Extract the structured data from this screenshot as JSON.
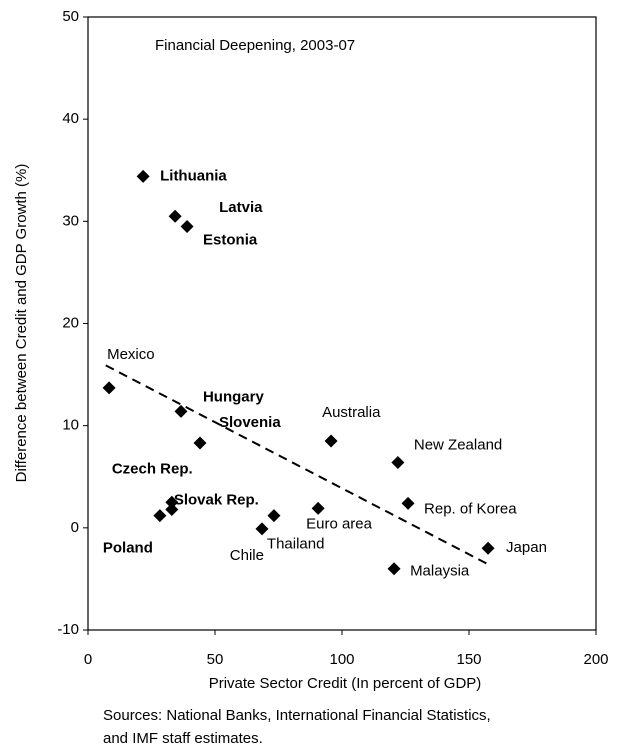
{
  "chart_data": {
    "type": "scatter",
    "title": "Financial Deepening, 2003-07",
    "x_label": "Private Sector Credit (In percent of GDP)",
    "y_label": "Difference between Credit and GDP Growth (%)",
    "source_lines": [
      "Sources: National Banks, International Financial Statistics,",
      "and IMF staff estimates."
    ],
    "color": "#000000",
    "x": [
      21.7,
      34.3,
      39,
      8.3,
      36.6,
      44.1,
      33,
      33,
      28.3,
      68.5,
      73.2,
      90.6,
      95.7,
      122,
      126,
      157.5,
      120.5
    ],
    "values": [
      34.4,
      30.5,
      29.5,
      13.7,
      11.4,
      8.3,
      2.5,
      1.8,
      1.2,
      -0.1,
      1.2,
      1.9,
      8.5,
      6.4,
      2.4,
      -2.0,
      -4.0
    ],
    "point_labels": [
      "Lithuania",
      "Latvia",
      "Estonia",
      "Mexico",
      "Hungary",
      "Slovenia",
      "Czech Rep.",
      "Slovak Rep.",
      "Poland",
      "Chile",
      "Thailand",
      "Euro area",
      "Australia",
      "New Zealand",
      "Rep. of Korea",
      "Japan",
      "Malaysia"
    ],
    "bold_labels": [
      true,
      true,
      true,
      false,
      true,
      true,
      true,
      true,
      true,
      false,
      false,
      false,
      false,
      false,
      false,
      false,
      false
    ],
    "trendline": {
      "x": [
        7,
        157
      ],
      "values": [
        15.9,
        -3.5
      ]
    },
    "xlim": [
      0,
      200
    ],
    "xticks": [
      0,
      50,
      100,
      150,
      200
    ],
    "ylim": [
      -10,
      50
    ],
    "yticks": [
      -10,
      0,
      10,
      20,
      30,
      40,
      50
    ]
  }
}
